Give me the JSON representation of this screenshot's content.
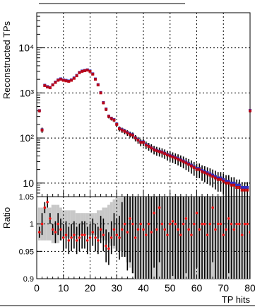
{
  "chart_data": [
    {
      "type": "scatter",
      "panel": "main",
      "title": "",
      "xlabel": "",
      "ylabel": "Reconstructed TPs",
      "y_scale": "log",
      "xlim": [
        0,
        80
      ],
      "ylim": [
        5,
        60000
      ],
      "grid": true,
      "x_ticks": [
        "0",
        "10",
        "20",
        "30",
        "40",
        "50",
        "60",
        "70",
        "80"
      ],
      "y_ticks": [
        {
          "value": 10,
          "label": "10"
        },
        {
          "value": 100,
          "label": "10²"
        },
        {
          "value": 1000,
          "label": "10³"
        },
        {
          "value": 10000,
          "label": "10⁴"
        }
      ],
      "series": [
        {
          "marker_color": "#cc0000",
          "x": [
            1,
            2,
            3,
            4,
            5,
            6,
            7,
            8,
            9,
            10,
            11,
            12,
            13,
            14,
            15,
            16,
            17,
            18,
            19,
            20,
            21,
            22,
            23,
            24,
            25,
            26,
            27,
            28,
            29,
            30,
            31,
            32,
            33,
            34,
            35,
            36,
            37,
            38,
            39,
            40,
            41,
            42,
            43,
            44,
            45,
            46,
            47,
            48,
            49,
            50,
            51,
            52,
            53,
            54,
            55,
            56,
            57,
            58,
            59,
            60,
            61,
            62,
            63,
            64,
            65,
            66,
            67,
            68,
            69,
            70,
            71,
            72,
            73,
            74,
            75,
            76,
            77,
            78,
            79,
            80
          ],
          "y": [
            400,
            150,
            1450,
            1350,
            1300,
            1500,
            1700,
            1900,
            2000,
            1900,
            1850,
            1800,
            1900,
            2100,
            2400,
            2800,
            3000,
            3100,
            3200,
            3000,
            2600,
            2000,
            1500,
            1000,
            600,
            430,
            300,
            270,
            250,
            200,
            160,
            150,
            140,
            130,
            120,
            115,
            100,
            90,
            80,
            80,
            70,
            65,
            60,
            55,
            52,
            50,
            48,
            45,
            42,
            40,
            38,
            36,
            34,
            32,
            30,
            28,
            26,
            24,
            22,
            20,
            20,
            18,
            17,
            16,
            15,
            14,
            13,
            12,
            12,
            11,
            10,
            10,
            9,
            9,
            8,
            8,
            7,
            7,
            7,
            400
          ]
        },
        {
          "marker_color": "#3030c0",
          "x": [
            1,
            2,
            3,
            4,
            5,
            6,
            7,
            8,
            9,
            10,
            11,
            12,
            13,
            14,
            15,
            16,
            17,
            18,
            19,
            20,
            21,
            22,
            23,
            24,
            25,
            26,
            27,
            28,
            29,
            30,
            31,
            32,
            33,
            34,
            35,
            36,
            37,
            38,
            39,
            40,
            41,
            42,
            43,
            44,
            45,
            46,
            47,
            48,
            49,
            50,
            51,
            52,
            53,
            54,
            55,
            56,
            57,
            58,
            59,
            60,
            61,
            62,
            63,
            64,
            65,
            66,
            67,
            68,
            69,
            70,
            71,
            72,
            73,
            74,
            75,
            76,
            77,
            78,
            79,
            80
          ],
          "y": [
            405,
            152,
            1480,
            1380,
            1320,
            1520,
            1740,
            1950,
            2050,
            1950,
            1900,
            1840,
            1950,
            2150,
            2450,
            2850,
            3060,
            3150,
            3250,
            3060,
            2650,
            2040,
            1530,
            1020,
            610,
            440,
            305,
            275,
            255,
            205,
            163,
            153,
            143,
            133,
            123,
            118,
            102,
            92,
            82,
            82,
            72,
            66,
            61,
            56,
            53,
            51,
            49,
            46,
            43,
            41,
            39,
            37,
            35,
            33,
            31,
            29,
            27,
            25,
            23,
            21,
            21,
            19,
            18,
            17,
            16,
            15,
            14,
            13,
            13,
            12,
            11,
            11,
            10,
            10,
            9,
            9,
            8,
            8,
            8,
            410
          ]
        }
      ]
    },
    {
      "type": "scatter",
      "panel": "ratio",
      "title": "",
      "xlabel": "TP hits",
      "ylabel": "Ratio",
      "xlim": [
        0,
        80
      ],
      "ylim": [
        0.9,
        1.05
      ],
      "grid": true,
      "x_ticks": [
        "0",
        "10",
        "20",
        "30",
        "40",
        "50",
        "60",
        "70",
        "80"
      ],
      "y_ticks": [
        {
          "value": 0.9,
          "label": "0.9"
        },
        {
          "value": 0.95,
          "label": "0.95"
        },
        {
          "value": 1.0,
          "label": "1"
        },
        {
          "value": 1.05,
          "label": "1.05"
        }
      ],
      "uncertainty_band_color": "#c8c8c8",
      "series": [
        {
          "marker_color": "#ee1111",
          "x": [
            1,
            2,
            3,
            4,
            5,
            6,
            7,
            8,
            9,
            10,
            11,
            12,
            13,
            14,
            15,
            16,
            17,
            18,
            19,
            20,
            21,
            22,
            23,
            24,
            25,
            26,
            27,
            28,
            29,
            30,
            31,
            32,
            33,
            34,
            35,
            36,
            37,
            38,
            39,
            40,
            41,
            42,
            43,
            44,
            45,
            46,
            47,
            48,
            49,
            50,
            51,
            52,
            53,
            54,
            55,
            56,
            57,
            58,
            59,
            60,
            61,
            62,
            63,
            64,
            65,
            66,
            67,
            68,
            69,
            70,
            71,
            72,
            73,
            74,
            75,
            76,
            77,
            78,
            79,
            80
          ],
          "y": [
            0.985,
            1.0,
            1.03,
            1.04,
            1.01,
            0.99,
            0.985,
            1.0,
            0.99,
            0.975,
            0.98,
            0.97,
            0.975,
            0.98,
            0.97,
            0.975,
            0.98,
            0.98,
            0.97,
            0.975,
            0.985,
            0.975,
            0.97,
            0.99,
            0.98,
            0.96,
            0.955,
            0.975,
            0.99,
            0.98,
            0.975,
            0.99,
            1.0,
            0.985,
            1.01,
            1.0,
            0.975,
            0.99,
            1.0,
            0.99,
            0.98,
            1.0,
            0.985,
            1.02,
            0.99,
            1.03,
            1.0,
            0.99,
            0.98,
            1.0,
            1.005,
            1.0,
            0.99,
            0.98,
            1.0,
            1.01,
            0.99,
            0.98,
            1.0,
            1.02,
            0.99,
            1.0,
            1.0,
            0.98,
            1.0,
            1.03,
            0.99,
            1.0,
            1.0,
            0.98,
            0.99,
            1.01,
            1.0,
            0.99,
            1.0,
            1.0,
            0.98,
            1.0,
            1.0,
            0.985
          ],
          "err": [
            0.01,
            0.02,
            0.01,
            0.01,
            0.01,
            0.01,
            0.02,
            0.02,
            0.02,
            0.025,
            0.025,
            0.025,
            0.025,
            0.025,
            0.025,
            0.025,
            0.025,
            0.025,
            0.025,
            0.025,
            0.025,
            0.025,
            0.025,
            0.025,
            0.03,
            0.03,
            0.03,
            0.03,
            0.03,
            0.03,
            0.04,
            0.05,
            0.06,
            0.07,
            0.08,
            0.09,
            0.1,
            0.1,
            0.1,
            0.1,
            0.1,
            0.1,
            0.1,
            0.1,
            0.1,
            0.1,
            0.1,
            0.1,
            0.1,
            0.1,
            0.1,
            0.1,
            0.1,
            0.1,
            0.1,
            0.1,
            0.1,
            0.1,
            0.1,
            0.1,
            0.1,
            0.1,
            0.1,
            0.1,
            0.1,
            0.1,
            0.1,
            0.1,
            0.1,
            0.1,
            0.1,
            0.1,
            0.1,
            0.1,
            0.1,
            0.1,
            0.1,
            0.1,
            0.1,
            0.1
          ],
          "band": [
            0.03,
            0.03,
            0.03,
            0.03,
            0.03,
            0.035,
            0.035,
            0.035,
            0.03,
            0.025,
            0.025,
            0.025,
            0.025,
            0.025,
            0.02,
            0.02,
            0.02,
            0.02,
            0.02,
            0.02,
            0.02,
            0.02,
            0.025,
            0.025,
            0.03,
            0.03,
            0.035,
            0.04,
            0.045,
            0.05,
            0.05,
            0.05,
            0.06,
            0.07,
            0.08,
            0.09,
            0.1,
            0.1,
            0.1,
            0.1,
            0.1,
            0.1,
            0.1,
            0.1,
            0.1,
            0.1,
            0.1,
            0.1,
            0.1,
            0.1,
            0.1,
            0.1,
            0.1,
            0.1,
            0.1,
            0.1,
            0.1,
            0.1,
            0.1,
            0.1,
            0.1,
            0.1,
            0.1,
            0.1,
            0.1,
            0.1,
            0.1,
            0.1,
            0.1,
            0.1,
            0.1,
            0.1,
            0.1,
            0.1,
            0.1,
            0.1,
            0.1,
            0.1,
            0.1,
            0.1
          ]
        }
      ]
    }
  ]
}
